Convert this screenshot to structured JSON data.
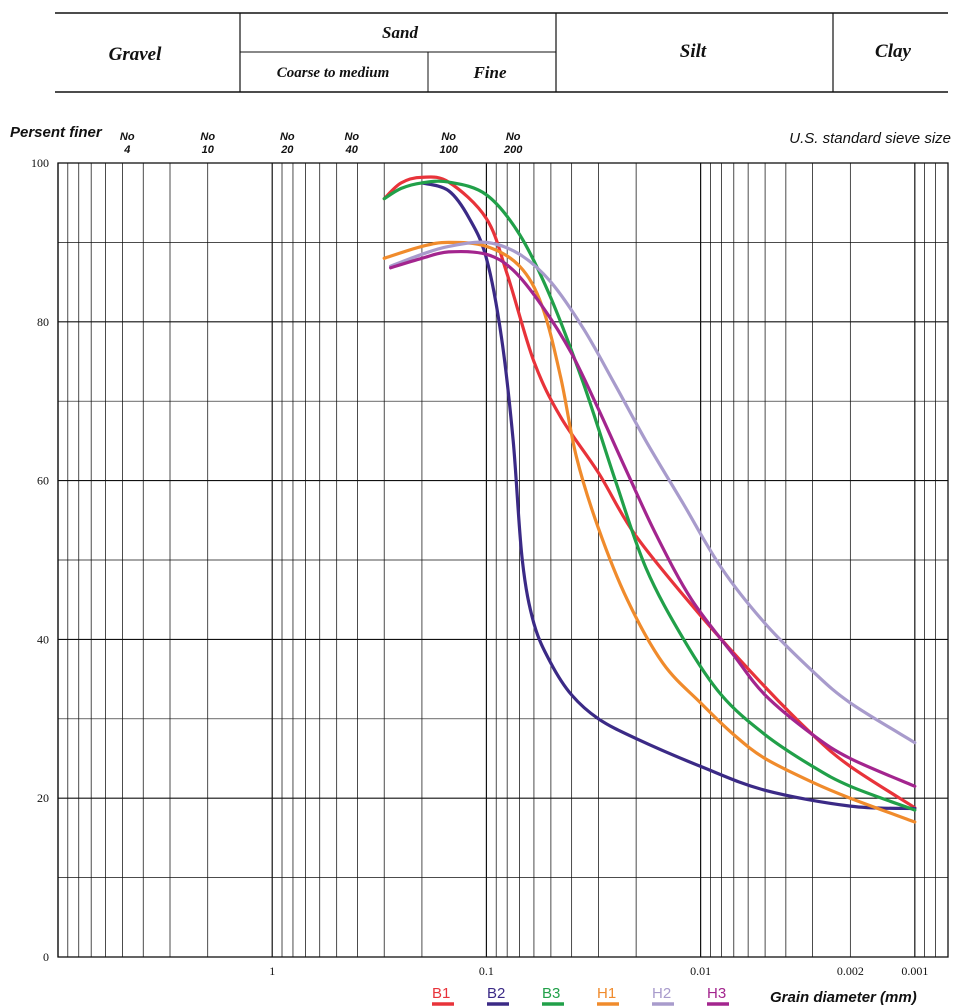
{
  "classification": {
    "gravel": "Gravel",
    "sand": "Sand",
    "coarse_to_medium": "Coarse to medium",
    "fine": "Fine",
    "silt": "Silt",
    "clay": "Clay"
  },
  "sieves": {
    "title": "U.S. standard sieve size",
    "items": [
      {
        "no": "No",
        "size": "4",
        "mm": 4.75
      },
      {
        "no": "No",
        "size": "10",
        "mm": 2.0
      },
      {
        "no": "No",
        "size": "20",
        "mm": 0.85
      },
      {
        "no": "No",
        "size": "40",
        "mm": 0.425
      },
      {
        "no": "No",
        "size": "100",
        "mm": 0.15
      },
      {
        "no": "No",
        "size": "200",
        "mm": 0.075
      }
    ]
  },
  "chart_data": {
    "type": "line",
    "ylabel": "Persent finer",
    "xlabel": "Grain diameter (mm)",
    "x_scale": "log",
    "x_reversed": true,
    "xlim": [
      10,
      0.0007
    ],
    "ylim": [
      0,
      100
    ],
    "yticks": [
      {
        "value": 0,
        "label": "0"
      },
      {
        "value": 20,
        "label": "20"
      },
      {
        "value": 40,
        "label": "40"
      },
      {
        "value": 60,
        "label": "60"
      },
      {
        "value": 80,
        "label": "80"
      },
      {
        "value": 100,
        "label": "100"
      }
    ],
    "xticks": [
      {
        "value": 1,
        "label": "1"
      },
      {
        "value": 0.1,
        "label": "0.1"
      },
      {
        "value": 0.01,
        "label": "0.01"
      },
      {
        "value": 0.002,
        "label": "0.002"
      },
      {
        "value": 0.001,
        "label": "0.001"
      }
    ],
    "grid": true,
    "legend_position": "bottom",
    "series": [
      {
        "name": "B1",
        "color": "#e8333a",
        "points": [
          [
            0.3,
            95.5
          ],
          [
            0.25,
            97.5
          ],
          [
            0.2,
            98.2
          ],
          [
            0.15,
            97.6
          ],
          [
            0.1,
            93
          ],
          [
            0.08,
            86
          ],
          [
            0.06,
            75
          ],
          [
            0.045,
            68
          ],
          [
            0.03,
            61
          ],
          [
            0.02,
            53
          ],
          [
            0.01,
            43
          ],
          [
            0.005,
            34
          ],
          [
            0.003,
            28
          ],
          [
            0.002,
            24
          ],
          [
            0.001,
            18.8
          ]
        ]
      },
      {
        "name": "B2",
        "color": "#3b2a86",
        "points": [
          [
            0.2,
            97.5
          ],
          [
            0.15,
            96.5
          ],
          [
            0.12,
            93
          ],
          [
            0.1,
            88
          ],
          [
            0.085,
            78
          ],
          [
            0.075,
            65
          ],
          [
            0.068,
            50
          ],
          [
            0.06,
            42
          ],
          [
            0.05,
            37
          ],
          [
            0.04,
            33
          ],
          [
            0.03,
            30
          ],
          [
            0.02,
            27.5
          ],
          [
            0.01,
            24
          ],
          [
            0.005,
            21
          ],
          [
            0.002,
            19
          ],
          [
            0.001,
            18.7
          ]
        ]
      },
      {
        "name": "B3",
        "color": "#21a049",
        "points": [
          [
            0.3,
            95.5
          ],
          [
            0.25,
            96.8
          ],
          [
            0.2,
            97.5
          ],
          [
            0.15,
            97.6
          ],
          [
            0.1,
            96
          ],
          [
            0.07,
            91
          ],
          [
            0.05,
            83
          ],
          [
            0.035,
            72
          ],
          [
            0.025,
            60
          ],
          [
            0.018,
            49
          ],
          [
            0.012,
            40
          ],
          [
            0.008,
            33
          ],
          [
            0.005,
            28
          ],
          [
            0.003,
            24
          ],
          [
            0.002,
            21.5
          ],
          [
            0.001,
            18.5
          ]
        ]
      },
      {
        "name": "H1",
        "color": "#f08b2c",
        "points": [
          [
            0.3,
            88
          ],
          [
            0.2,
            89.5
          ],
          [
            0.15,
            90
          ],
          [
            0.1,
            89.5
          ],
          [
            0.07,
            87
          ],
          [
            0.055,
            82
          ],
          [
            0.045,
            73
          ],
          [
            0.038,
            63
          ],
          [
            0.03,
            54
          ],
          [
            0.022,
            45
          ],
          [
            0.015,
            37
          ],
          [
            0.01,
            32
          ],
          [
            0.007,
            28
          ],
          [
            0.005,
            25
          ],
          [
            0.003,
            22
          ],
          [
            0.002,
            20
          ],
          [
            0.001,
            17
          ]
        ]
      },
      {
        "name": "H2",
        "color": "#a89bcc",
        "points": [
          [
            0.28,
            87
          ],
          [
            0.2,
            88.5
          ],
          [
            0.15,
            89.5
          ],
          [
            0.1,
            90
          ],
          [
            0.07,
            88.5
          ],
          [
            0.05,
            85
          ],
          [
            0.035,
            79
          ],
          [
            0.025,
            72
          ],
          [
            0.018,
            65
          ],
          [
            0.012,
            57
          ],
          [
            0.008,
            49
          ],
          [
            0.005,
            42
          ],
          [
            0.003,
            36
          ],
          [
            0.002,
            32
          ],
          [
            0.001,
            27
          ]
        ]
      },
      {
        "name": "H3",
        "color": "#a3258e",
        "points": [
          [
            0.28,
            86.8
          ],
          [
            0.2,
            88
          ],
          [
            0.15,
            88.8
          ],
          [
            0.1,
            88.5
          ],
          [
            0.075,
            86.5
          ],
          [
            0.055,
            82
          ],
          [
            0.04,
            76
          ],
          [
            0.03,
            69
          ],
          [
            0.022,
            61
          ],
          [
            0.016,
            53
          ],
          [
            0.011,
            45
          ],
          [
            0.007,
            38
          ],
          [
            0.005,
            33
          ],
          [
            0.003,
            28
          ],
          [
            0.002,
            25
          ],
          [
            0.001,
            21.5
          ]
        ]
      }
    ]
  }
}
